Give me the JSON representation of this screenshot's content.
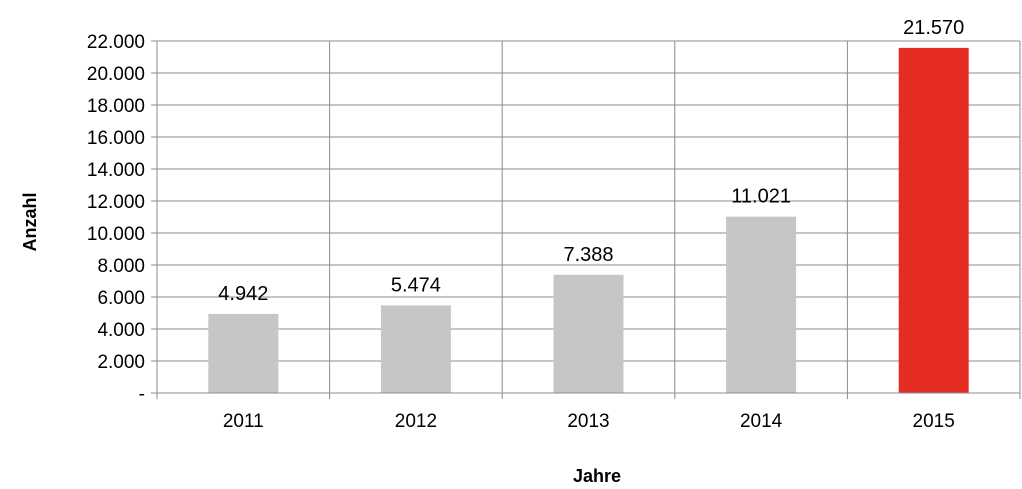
{
  "chart_data": {
    "type": "bar",
    "categories": [
      "2011",
      "2012",
      "2013",
      "2014",
      "2015"
    ],
    "values": [
      4942,
      5474,
      7388,
      11021,
      21570
    ],
    "data_labels": [
      "4.942",
      "5.474",
      "7.388",
      "11.021",
      "21.570"
    ],
    "xlabel": "Jahre",
    "ylabel": "Anzahl",
    "ylim": [
      0,
      22000
    ],
    "y_ticks": [
      {
        "value": 0,
        "label": "-"
      },
      {
        "value": 2000,
        "label": "2.000"
      },
      {
        "value": 4000,
        "label": "4.000"
      },
      {
        "value": 6000,
        "label": "6.000"
      },
      {
        "value": 8000,
        "label": "8.000"
      },
      {
        "value": 10000,
        "label": "10.000"
      },
      {
        "value": 12000,
        "label": "12.000"
      },
      {
        "value": 14000,
        "label": "14.000"
      },
      {
        "value": 16000,
        "label": "16.000"
      },
      {
        "value": 18000,
        "label": "18.000"
      },
      {
        "value": 20000,
        "label": "20.000"
      },
      {
        "value": 22000,
        "label": "22.000"
      }
    ],
    "grid": true,
    "colors": {
      "default_bar": "#c6c6c6",
      "highlight_bar": "#e52d24",
      "gridline": "#8c8c8c",
      "axis": "#8c8c8c"
    },
    "highlight_index": 4
  }
}
